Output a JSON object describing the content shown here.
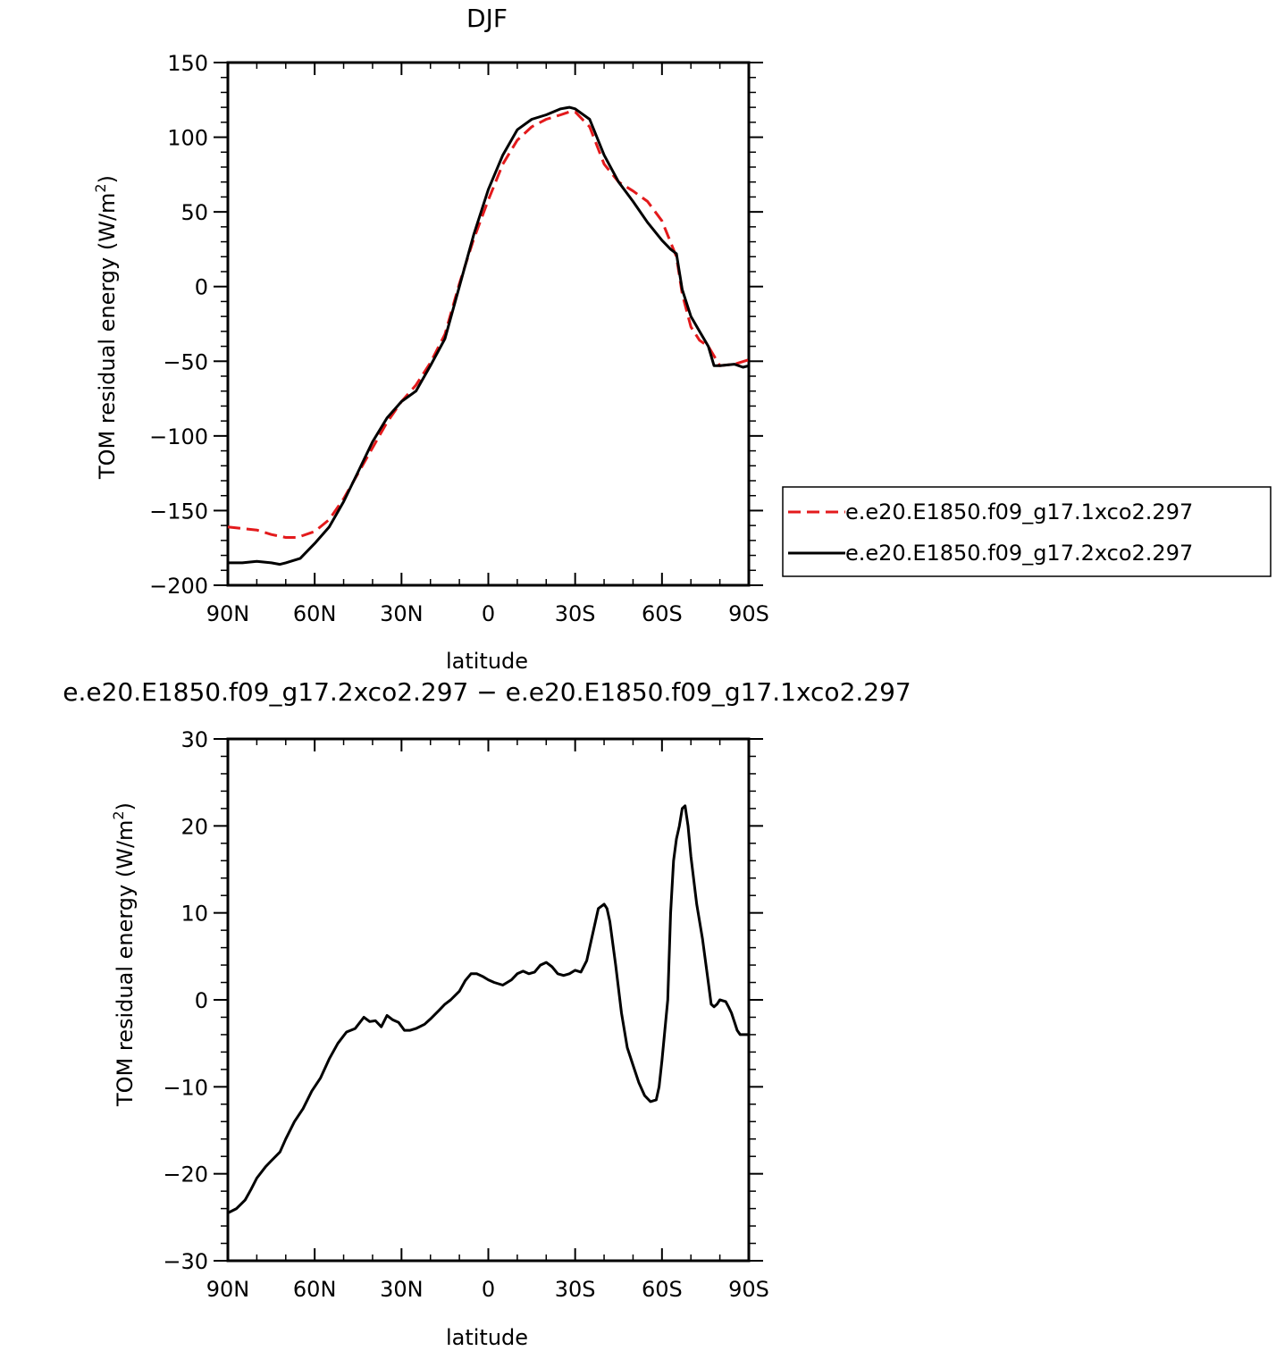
{
  "chart_data": [
    {
      "type": "line",
      "title": "DJF",
      "xlabel": "latitude",
      "ylabel": "TOM residual energy (W/m",
      "ylabel_sup": "2",
      "ylabel_end": ")",
      "xlim": [
        -90,
        90
      ],
      "ylim": [
        -200,
        150
      ],
      "xticks": [
        -90,
        -60,
        -30,
        0,
        30,
        60,
        90
      ],
      "xtick_labels": [
        "90N",
        "60N",
        "30N",
        "0",
        "30S",
        "60S",
        "90S"
      ],
      "yticks": [
        -200,
        -150,
        -100,
        -50,
        0,
        50,
        100,
        150
      ],
      "ytick_labels": [
        "−200",
        "−150",
        "−100",
        "−50",
        "0",
        "50",
        "100",
        "150"
      ],
      "grid": false,
      "legend_position": "right",
      "series": [
        {
          "name": "e.e20.E1850.f09_g17.1xco2.297",
          "color": "#e31a1c",
          "dash": "dashed",
          "x": [
            -90,
            -80,
            -75,
            -70,
            -66,
            -60,
            -55,
            -50,
            -45,
            -40,
            -35,
            -30,
            -25,
            -20,
            -15,
            -10,
            -5,
            0,
            5,
            10,
            15,
            20,
            25,
            28,
            30,
            35,
            40,
            45,
            50,
            55,
            60,
            65,
            67,
            70,
            73,
            76,
            80,
            85,
            90
          ],
          "values": [
            -161,
            -163,
            -166,
            -168,
            -168,
            -164,
            -156,
            -142,
            -125,
            -108,
            -91,
            -77,
            -66,
            -51,
            -32,
            2,
            32,
            58,
            82,
            98,
            107,
            112,
            115,
            117,
            117,
            107,
            82,
            70,
            64,
            57,
            44,
            20,
            -5,
            -27,
            -36,
            -40,
            -53,
            -52,
            -49
          ]
        },
        {
          "name": "e.e20.E1850.f09_g17.2xco2.297",
          "color": "#000000",
          "dash": "solid",
          "x": [
            -90,
            -85,
            -80,
            -75,
            -72,
            -70,
            -65,
            -60,
            -55,
            -50,
            -45,
            -40,
            -35,
            -30,
            -25,
            -20,
            -15,
            -10,
            -5,
            0,
            5,
            10,
            15,
            20,
            25,
            28,
            30,
            35,
            40,
            45,
            50,
            55,
            60,
            63,
            65,
            67,
            70,
            73,
            76,
            78,
            80,
            85,
            88,
            90
          ],
          "values": [
            -185,
            -185,
            -184,
            -185,
            -186,
            -185,
            -182,
            -172,
            -161,
            -144,
            -124,
            -104,
            -88,
            -77,
            -70,
            -53,
            -35,
            0,
            35,
            65,
            88,
            105,
            112,
            115,
            119,
            120,
            119,
            112,
            88,
            70,
            57,
            43,
            31,
            25,
            22,
            -2,
            -20,
            -30,
            -40,
            -53,
            -53,
            -52,
            -54,
            -53
          ]
        }
      ]
    },
    {
      "type": "line",
      "title": "e.e20.E1850.f09_g17.2xco2.297 − e.e20.E1850.f09_g17.1xco2.297",
      "xlabel": "latitude",
      "ylabel": "TOM residual energy (W/m",
      "ylabel_sup": "2",
      "ylabel_end": ")",
      "xlim": [
        -90,
        90
      ],
      "ylim": [
        -30,
        30
      ],
      "xticks": [
        -90,
        -60,
        -30,
        0,
        30,
        60,
        90
      ],
      "xtick_labels": [
        "90N",
        "60N",
        "30N",
        "0",
        "30S",
        "60S",
        "90S"
      ],
      "yticks": [
        -30,
        -20,
        -10,
        0,
        10,
        20,
        30
      ],
      "ytick_labels": [
        "−30",
        "−20",
        "−10",
        "0",
        "10",
        "20",
        "30"
      ],
      "grid": false,
      "series": [
        {
          "color": "#000000",
          "dash": "solid",
          "x": [
            -90,
            -87,
            -84,
            -82,
            -80,
            -77,
            -75,
            -72,
            -70,
            -67,
            -64,
            -61,
            -58,
            -55,
            -52,
            -49,
            -46,
            -43,
            -41,
            -39,
            -37,
            -35,
            -33,
            -31,
            -29,
            -27,
            -25,
            -22,
            -20,
            -17,
            -15,
            -13,
            -10,
            -8,
            -6,
            -4,
            -2,
            0,
            2,
            5,
            8,
            10,
            12,
            14,
            16,
            18,
            20,
            22,
            24,
            26,
            28,
            30,
            32,
            34,
            36,
            38,
            40,
            41,
            42,
            44,
            46,
            48,
            50,
            52,
            54,
            56,
            58,
            59,
            60,
            62,
            63,
            64,
            65,
            66,
            67,
            68,
            69,
            70,
            72,
            74,
            76,
            77,
            78,
            79,
            80,
            82,
            83,
            84,
            85,
            86,
            87,
            88,
            90
          ],
          "values": [
            -24.5,
            -24,
            -23,
            -21.8,
            -20.5,
            -19.2,
            -18.5,
            -17.5,
            -16,
            -14,
            -12.5,
            -10.5,
            -9,
            -6.8,
            -5,
            -3.7,
            -3.3,
            -2,
            -2.5,
            -2.4,
            -3.1,
            -1.8,
            -2.3,
            -2.6,
            -3.5,
            -3.5,
            -3.3,
            -2.8,
            -2.2,
            -1.2,
            -0.5,
            0,
            1,
            2.2,
            3,
            3,
            2.7,
            2.3,
            2,
            1.7,
            2.3,
            3,
            3.3,
            3,
            3.2,
            4,
            4.3,
            3.8,
            3,
            2.8,
            3,
            3.4,
            3.2,
            4.5,
            7.5,
            10.5,
            11,
            10.5,
            9,
            4,
            -1.5,
            -5.5,
            -7.5,
            -9.5,
            -11,
            -11.7,
            -11.5,
            -10,
            -7,
            0,
            10,
            16,
            18.5,
            20,
            22,
            22.3,
            20,
            16.5,
            11,
            7,
            2,
            -0.5,
            -0.8,
            -0.5,
            0,
            -0.2,
            -0.8,
            -1.5,
            -2.5,
            -3.5,
            -4,
            -4,
            -4
          ]
        }
      ]
    }
  ]
}
